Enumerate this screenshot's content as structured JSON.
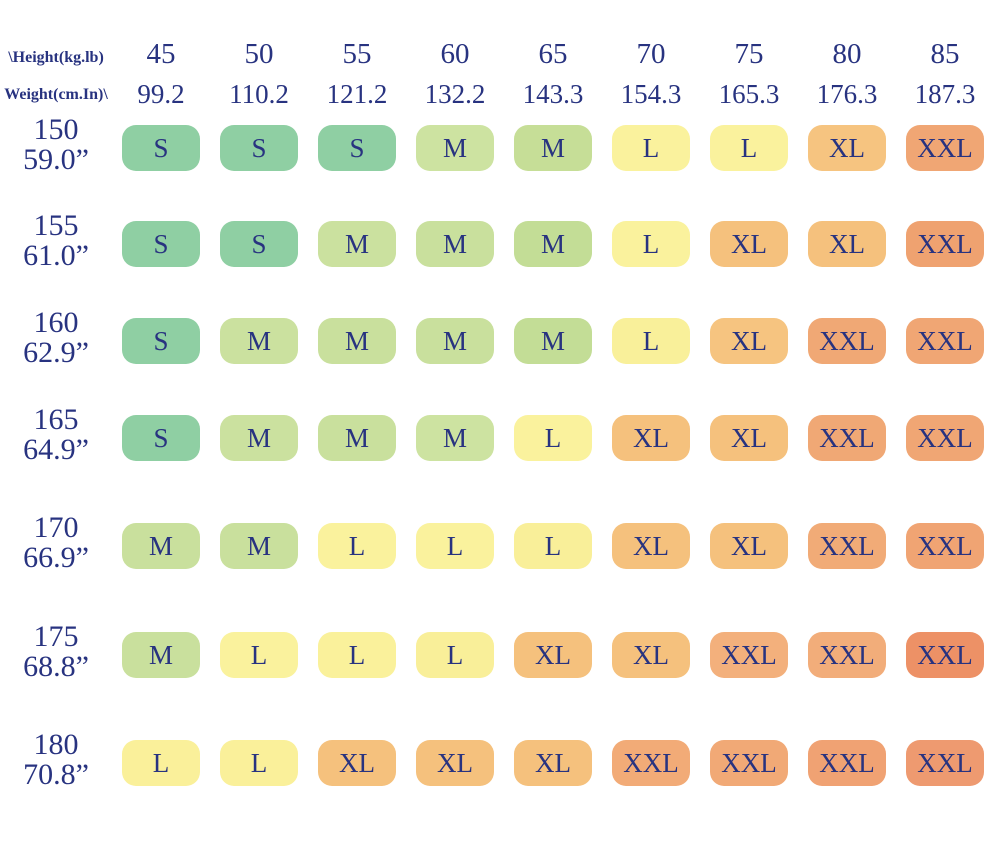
{
  "page": {
    "background": "#ffffff",
    "text_color": "#283380"
  },
  "chart_data": {
    "type": "heatmap",
    "title": "",
    "corner_label_top": "\\Height(kg.lb)",
    "corner_label_bottom": "Weight(cm.In)\\",
    "legend": null,
    "grid": "off",
    "size_palette": {
      "S": "#8fcfa3",
      "M": "#c9e09d",
      "L": "#faf19c",
      "XL": "#f5c17d",
      "XXL": "#f0a674",
      "XXL_deep": "#ed9166"
    },
    "columns": [
      {
        "kg": "45",
        "lb": "99.2"
      },
      {
        "kg": "50",
        "lb": "110.2"
      },
      {
        "kg": "55",
        "lb": "121.2"
      },
      {
        "kg": "60",
        "lb": "132.2"
      },
      {
        "kg": "65",
        "lb": "143.3"
      },
      {
        "kg": "70",
        "lb": "154.3"
      },
      {
        "kg": "75",
        "lb": "165.3"
      },
      {
        "kg": "80",
        "lb": "176.3"
      },
      {
        "kg": "85",
        "lb": "187.3"
      }
    ],
    "rows": [
      {
        "cm": "150",
        "inch": "59.0”",
        "sizes": [
          "S",
          "S",
          "S",
          "M",
          "M",
          "L",
          "L",
          "XL",
          "XXL"
        ],
        "colors": [
          "#8fcfa3",
          "#8fcfa3",
          "#8fcfa3",
          "#cde3a1",
          "#c6de97",
          "#faf29d",
          "#faf29d",
          "#f6c480",
          "#f0a674"
        ]
      },
      {
        "cm": "155",
        "inch": "61.0”",
        "sizes": [
          "S",
          "S",
          "M",
          "M",
          "M",
          "L",
          "XL",
          "XL",
          "XXL"
        ],
        "colors": [
          "#8fcfa3",
          "#8fcfa3",
          "#cbe19f",
          "#c9e09d",
          "#c3dd96",
          "#faf29d",
          "#f5c17d",
          "#f5c17d",
          "#efa270"
        ]
      },
      {
        "cm": "160",
        "inch": "62.9”",
        "sizes": [
          "S",
          "M",
          "M",
          "M",
          "M",
          "L",
          "XL",
          "XXL",
          "XXL"
        ],
        "colors": [
          "#8fcfa3",
          "#cbe19f",
          "#c9e09d",
          "#c9e09d",
          "#c3dd96",
          "#f9f09a",
          "#f6c480",
          "#f0a875",
          "#f0a674"
        ]
      },
      {
        "cm": "165",
        "inch": "64.9”",
        "sizes": [
          "S",
          "M",
          "M",
          "M",
          "L",
          "XL",
          "XL",
          "XXL",
          "XXL"
        ],
        "colors": [
          "#8fcfa3",
          "#cbe19f",
          "#c9e09d",
          "#cde3a1",
          "#faf29d",
          "#f5c17d",
          "#f5c17d",
          "#f0a875",
          "#f0a674"
        ]
      },
      {
        "cm": "170",
        "inch": "66.9”",
        "sizes": [
          "M",
          "M",
          "L",
          "L",
          "L",
          "XL",
          "XL",
          "XXL",
          "XXL"
        ],
        "colors": [
          "#c9e09d",
          "#c9e09d",
          "#faf29d",
          "#faf29d",
          "#f9ef99",
          "#f5c17d",
          "#f5c17d",
          "#f1ab77",
          "#f0a473"
        ]
      },
      {
        "cm": "175",
        "inch": "68.8”",
        "sizes": [
          "M",
          "L",
          "L",
          "L",
          "XL",
          "XL",
          "XXL",
          "XXL",
          "XXL"
        ],
        "colors": [
          "#c9e09d",
          "#faf29d",
          "#faf19b",
          "#f9ef99",
          "#f5c17d",
          "#f5c17d",
          "#f3b07c",
          "#f2ad7a",
          "#ed9166"
        ]
      },
      {
        "cm": "180",
        "inch": "70.8”",
        "sizes": [
          "L",
          "L",
          "XL",
          "XL",
          "XL",
          "XXL",
          "XXL",
          "XXL",
          "XXL"
        ],
        "colors": [
          "#faf09a",
          "#faf09a",
          "#f5c17d",
          "#f5c17d",
          "#f5c17d",
          "#f2ab77",
          "#f1a976",
          "#f0a273",
          "#ee9a70"
        ]
      }
    ]
  }
}
